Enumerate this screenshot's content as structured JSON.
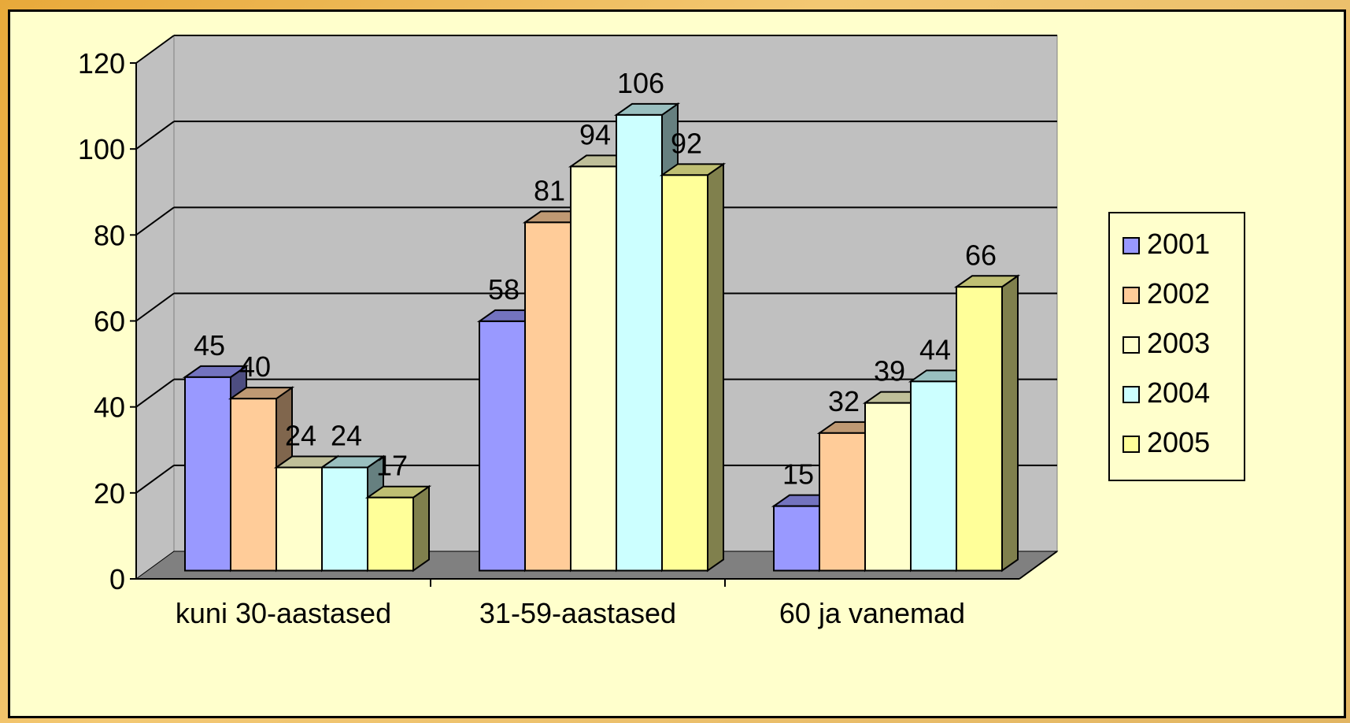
{
  "chart_data": {
    "type": "bar",
    "title": "",
    "xlabel": "",
    "ylabel": "",
    "categories": [
      "kuni 30-aastased",
      "31-59-aastased",
      "60 ja vanemad"
    ],
    "series": [
      {
        "name": "2001",
        "values": [
          45,
          58,
          15
        ],
        "color": "#9999ff"
      },
      {
        "name": "2002",
        "values": [
          40,
          81,
          32
        ],
        "color": "#ffcc99"
      },
      {
        "name": "2003",
        "values": [
          24,
          94,
          39
        ],
        "color": "#ffffcc"
      },
      {
        "name": "2004",
        "values": [
          24,
          106,
          44
        ],
        "color": "#ccffff"
      },
      {
        "name": "2005",
        "values": [
          17,
          92,
          66
        ],
        "color": "#ffff99"
      }
    ],
    "yticks": [
      "0",
      "20",
      "40",
      "60",
      "80",
      "100",
      "120"
    ],
    "ylim": [
      0,
      120
    ],
    "grid": true,
    "legend_position": "right",
    "style": "3d-clustered-column",
    "colors": {
      "wall": "#c0c0c0",
      "floor": "#808080",
      "background": "#ffffcc"
    }
  }
}
